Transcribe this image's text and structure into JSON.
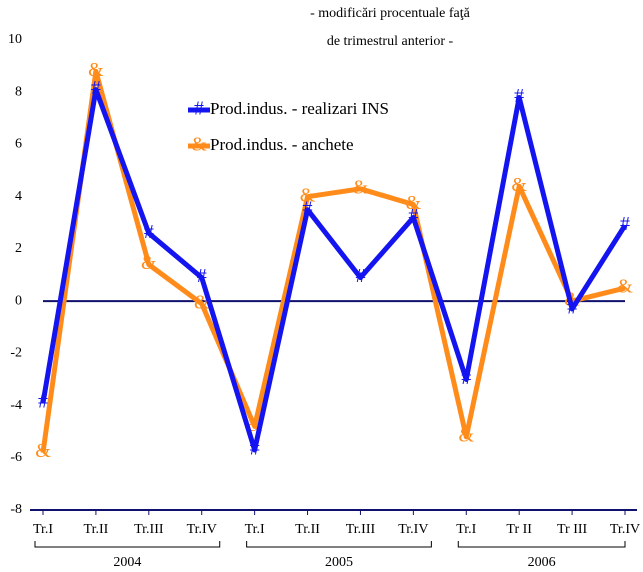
{
  "chart_data": {
    "type": "line",
    "title": [
      "- modificări procentuale faţă",
      "de trimestrul anterior -"
    ],
    "categories": [
      "Tr.I",
      "Tr.II",
      "Tr.III",
      "Tr.IV",
      "Tr.I",
      "Tr.II",
      "Tr.III",
      "Tr.IV",
      "Tr.I",
      "Tr II",
      "Tr III",
      "Tr.IV"
    ],
    "year_groups": [
      "2004",
      "2005",
      "2006"
    ],
    "series": [
      {
        "name": "Prod.indus. - realizari INS",
        "color": "#1414f0",
        "marker": "#",
        "values": [
          -3.9,
          8.1,
          2.6,
          0.9,
          -5.7,
          3.5,
          0.9,
          3.2,
          -3.0,
          7.8,
          -0.3,
          2.9
        ]
      },
      {
        "name": "Prod.indus. - anchete",
        "color": "#ff8c1a",
        "marker": "&",
        "values": [
          -5.8,
          8.8,
          1.4,
          -0.1,
          -4.8,
          4.0,
          4.3,
          3.7,
          -5.2,
          4.4,
          0.0,
          0.5
        ]
      }
    ],
    "ylim": [
      -8,
      10
    ],
    "yticks": [
      -8,
      -6,
      -4,
      -2,
      0,
      2,
      4,
      6,
      8,
      10
    ],
    "grid": false
  }
}
